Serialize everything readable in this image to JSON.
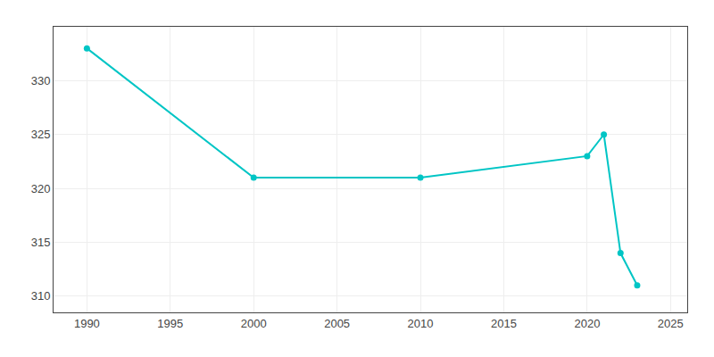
{
  "chart_data": {
    "type": "line",
    "x": [
      1990,
      2000,
      2010,
      2020,
      2021,
      2022,
      2023
    ],
    "values": [
      333,
      321,
      321,
      323,
      325,
      314,
      311
    ],
    "color": "#00C5C5",
    "marker": "circle",
    "xlim": [
      1988,
      2026
    ],
    "xticks": [
      1990,
      1995,
      2000,
      2005,
      2010,
      2015,
      2020,
      2025
    ],
    "ylim": [
      308.5,
      335
    ],
    "yticks": [
      310,
      315,
      320,
      325,
      330
    ],
    "grid": true
  }
}
